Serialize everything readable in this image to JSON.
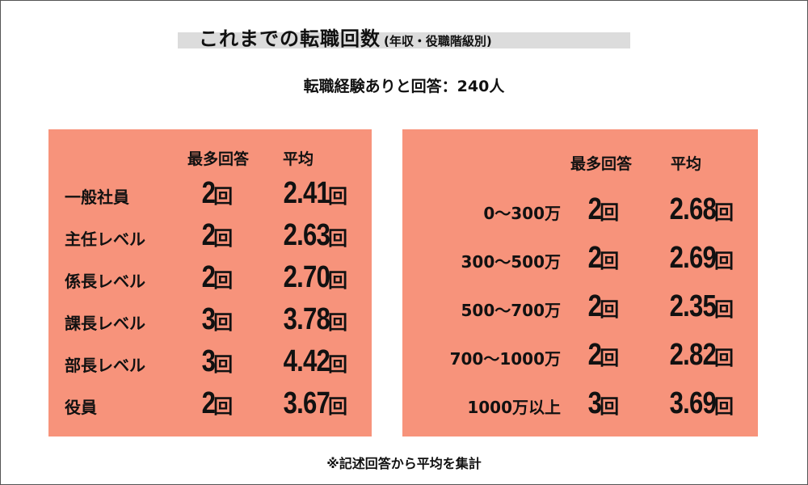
{
  "title": "これまでの転職回数",
  "title_sub": "(年収・役職階級別)",
  "subtitle": "転職経験ありと回答：240人",
  "footnote": "※記述回答から平均を集計",
  "colors": {
    "panel": "#f7937b",
    "title_band": "#dcdcdc"
  },
  "chart_data": [
    {
      "type": "table",
      "columns": [
        "最多回答",
        "平均"
      ],
      "unit": "回",
      "rows": [
        {
          "label": "一般社員",
          "mode": "2",
          "avg": "2.41"
        },
        {
          "label": "主任レベル",
          "mode": "2",
          "avg": "2.63"
        },
        {
          "label": "係長レベル",
          "mode": "2",
          "avg": "2.70"
        },
        {
          "label": "課長レベル",
          "mode": "3",
          "avg": "3.78"
        },
        {
          "label": "部長レベル",
          "mode": "3",
          "avg": "4.42"
        },
        {
          "label": "役員",
          "mode": "2",
          "avg": "3.67"
        }
      ]
    },
    {
      "type": "table",
      "columns": [
        "最多回答",
        "平均"
      ],
      "unit": "回",
      "rows": [
        {
          "label": "0〜300万",
          "mode": "2",
          "avg": "2.68"
        },
        {
          "label": "300〜500万",
          "mode": "2",
          "avg": "2.69"
        },
        {
          "label": "500〜700万",
          "mode": "2",
          "avg": "2.35"
        },
        {
          "label": "700〜1000万",
          "mode": "2",
          "avg": "2.82"
        },
        {
          "label": "1000万以上",
          "mode": "3",
          "avg": "3.69"
        }
      ]
    }
  ]
}
